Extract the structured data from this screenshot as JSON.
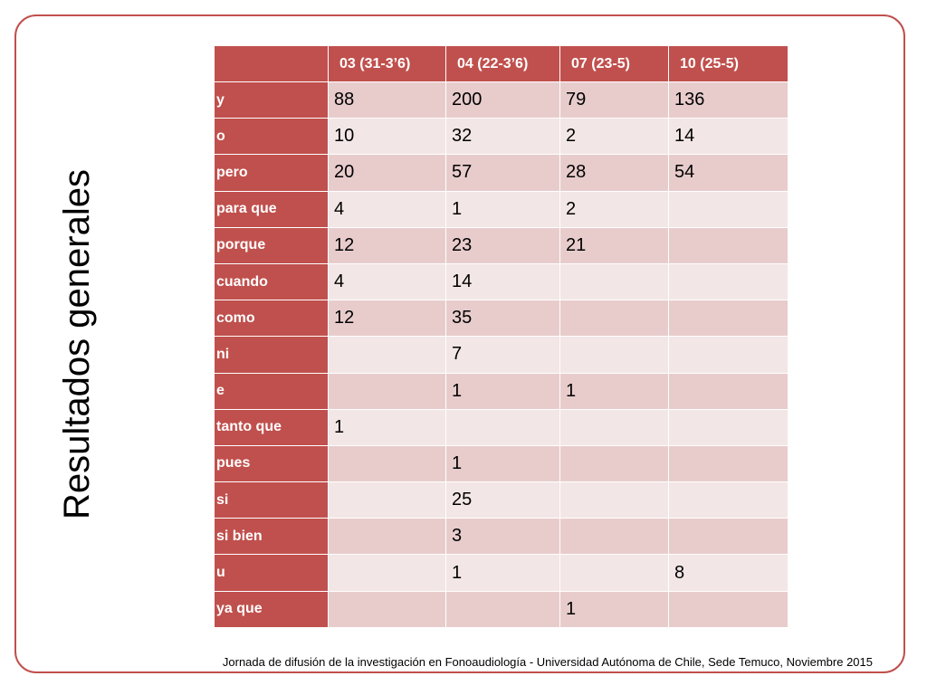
{
  "title": "Resultados generales",
  "table": {
    "headers": [
      "",
      "03 (31-3’6)",
      "04 (22-3’6)",
      "07 (23-5)",
      "10 (25-5)"
    ],
    "rows": [
      {
        "label": "y",
        "values": [
          "88",
          "200",
          "79",
          "136"
        ]
      },
      {
        "label": "o",
        "values": [
          "10",
          "32",
          "2",
          "14"
        ]
      },
      {
        "label": "pero",
        "values": [
          "20",
          "57",
          "28",
          "54"
        ]
      },
      {
        "label": "para que",
        "values": [
          "4",
          "1",
          "2",
          ""
        ]
      },
      {
        "label": "porque",
        "values": [
          "12",
          "23",
          "21",
          ""
        ]
      },
      {
        "label": "cuando",
        "values": [
          "4",
          "14",
          "",
          ""
        ]
      },
      {
        "label": "como",
        "values": [
          "12",
          "35",
          "",
          ""
        ]
      },
      {
        "label": "ni",
        "values": [
          "",
          "7",
          "",
          ""
        ]
      },
      {
        "label": "e",
        "values": [
          "",
          "1",
          "1",
          ""
        ]
      },
      {
        "label": "tanto que",
        "values": [
          "1",
          "",
          "",
          ""
        ]
      },
      {
        "label": "pues",
        "values": [
          "",
          "1",
          "",
          ""
        ]
      },
      {
        "label": "si",
        "values": [
          "",
          "25",
          "",
          ""
        ]
      },
      {
        "label": "si bien",
        "values": [
          "",
          "3",
          "",
          ""
        ]
      },
      {
        "label": "u",
        "values": [
          "",
          "1",
          "",
          "8"
        ]
      },
      {
        "label": "ya que",
        "values": [
          "",
          "",
          "1",
          ""
        ]
      }
    ]
  },
  "footer": "Jornada de difusión de la investigación en Fonoaudiología - Universidad Autónoma de Chile, Sede Temuco, Noviembre 2015",
  "colors": {
    "accent": "#c0504d",
    "row_odd": "#e8cccc",
    "row_even": "#f3e6e6"
  }
}
